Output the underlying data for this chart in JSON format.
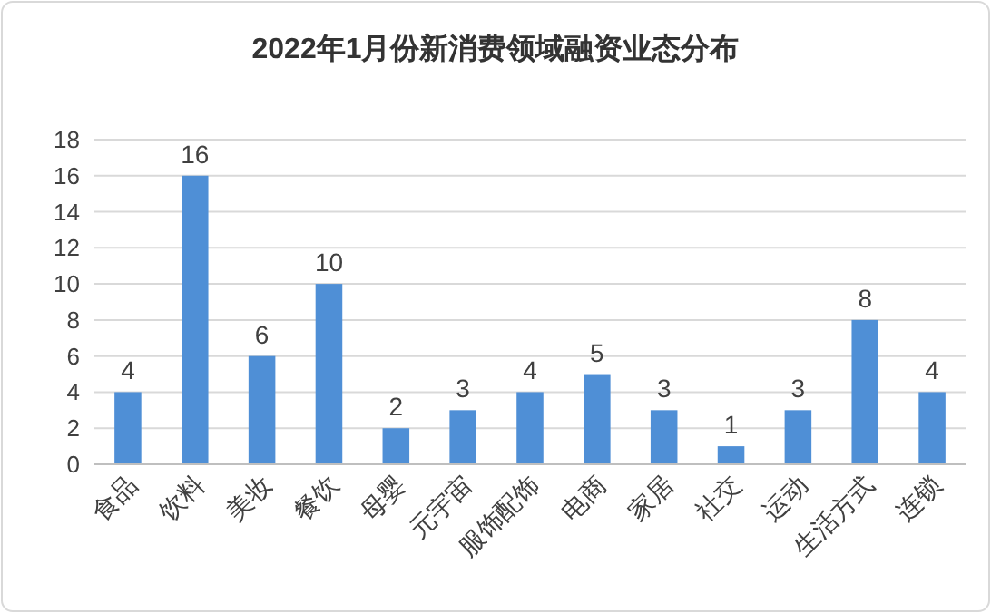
{
  "chart_data": {
    "type": "bar",
    "title": "2022年1月份新消费领域融资业态分布",
    "categories": [
      "食品",
      "饮料",
      "美妆",
      "餐饮",
      "母婴",
      "元宇宙",
      "服饰配饰",
      "电商",
      "家居",
      "社交",
      "运动",
      "生活方式",
      "连锁"
    ],
    "values": [
      4,
      16,
      6,
      10,
      2,
      3,
      4,
      5,
      3,
      1,
      3,
      8,
      4
    ],
    "color": "#4f8fd6",
    "ylim": [
      0,
      18
    ],
    "yticks": [
      0,
      2,
      4,
      6,
      8,
      10,
      12,
      14,
      16,
      18
    ],
    "grid": "y",
    "data_labels": true
  }
}
